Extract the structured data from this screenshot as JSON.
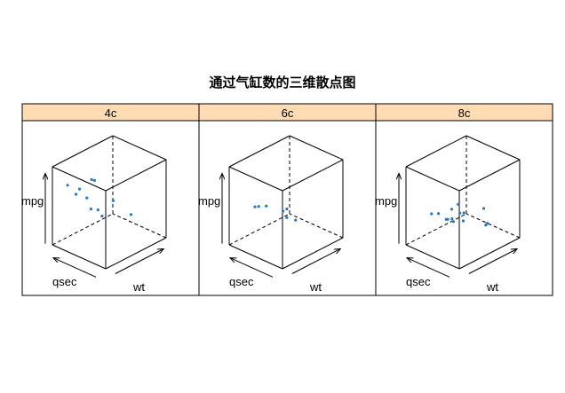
{
  "chart_data": {
    "type": "scatter",
    "title": "通过气缸数的三维散点图",
    "axis_labels": {
      "x": "wt",
      "y": "qsec",
      "z": "mpg"
    },
    "ranges": {
      "wt": [
        1.513,
        5.424
      ],
      "qsec": [
        14.5,
        22.9
      ],
      "mpg": [
        10.4,
        33.9
      ]
    },
    "point_color": "#1f78c8",
    "strip_color": "#ffdcb4",
    "panels": [
      {
        "label": "4c",
        "points": [
          {
            "wt": 2.32,
            "qsec": 18.61,
            "mpg": 22.8
          },
          {
            "wt": 3.19,
            "qsec": 20.0,
            "mpg": 24.4
          },
          {
            "wt": 3.15,
            "qsec": 22.9,
            "mpg": 22.8
          },
          {
            "wt": 2.2,
            "qsec": 19.47,
            "mpg": 32.4
          },
          {
            "wt": 1.615,
            "qsec": 18.52,
            "mpg": 30.4
          },
          {
            "wt": 1.835,
            "qsec": 19.9,
            "mpg": 33.9
          },
          {
            "wt": 2.465,
            "qsec": 20.01,
            "mpg": 21.5
          },
          {
            "wt": 1.935,
            "qsec": 18.9,
            "mpg": 27.3
          },
          {
            "wt": 2.14,
            "qsec": 16.7,
            "mpg": 26.0
          },
          {
            "wt": 1.513,
            "qsec": 16.9,
            "mpg": 30.4
          },
          {
            "wt": 2.78,
            "qsec": 18.6,
            "mpg": 21.4
          }
        ]
      },
      {
        "label": "6c",
        "points": [
          {
            "wt": 2.62,
            "qsec": 16.46,
            "mpg": 21.0
          },
          {
            "wt": 2.875,
            "qsec": 17.02,
            "mpg": 21.0
          },
          {
            "wt": 3.215,
            "qsec": 19.44,
            "mpg": 21.4
          },
          {
            "wt": 3.46,
            "qsec": 20.22,
            "mpg": 18.1
          },
          {
            "wt": 3.44,
            "qsec": 18.3,
            "mpg": 19.2
          },
          {
            "wt": 3.44,
            "qsec": 18.9,
            "mpg": 17.8
          },
          {
            "wt": 2.77,
            "qsec": 15.5,
            "mpg": 19.7
          }
        ]
      },
      {
        "label": "8c",
        "points": [
          {
            "wt": 3.44,
            "qsec": 17.02,
            "mpg": 18.7
          },
          {
            "wt": 3.57,
            "qsec": 15.84,
            "mpg": 14.3
          },
          {
            "wt": 4.07,
            "qsec": 17.4,
            "mpg": 16.4
          },
          {
            "wt": 3.73,
            "qsec": 17.6,
            "mpg": 17.3
          },
          {
            "wt": 3.78,
            "qsec": 18.0,
            "mpg": 15.2
          },
          {
            "wt": 5.25,
            "qsec": 17.98,
            "mpg": 10.4
          },
          {
            "wt": 5.424,
            "qsec": 17.82,
            "mpg": 10.4
          },
          {
            "wt": 5.345,
            "qsec": 17.42,
            "mpg": 14.7
          },
          {
            "wt": 3.52,
            "qsec": 16.87,
            "mpg": 15.5
          },
          {
            "wt": 3.435,
            "qsec": 17.3,
            "mpg": 15.2
          },
          {
            "wt": 3.84,
            "qsec": 15.41,
            "mpg": 13.3
          },
          {
            "wt": 3.845,
            "qsec": 17.05,
            "mpg": 19.2
          },
          {
            "wt": 3.17,
            "qsec": 14.5,
            "mpg": 15.8
          },
          {
            "wt": 3.57,
            "qsec": 14.6,
            "mpg": 15.0
          }
        ]
      }
    ]
  }
}
